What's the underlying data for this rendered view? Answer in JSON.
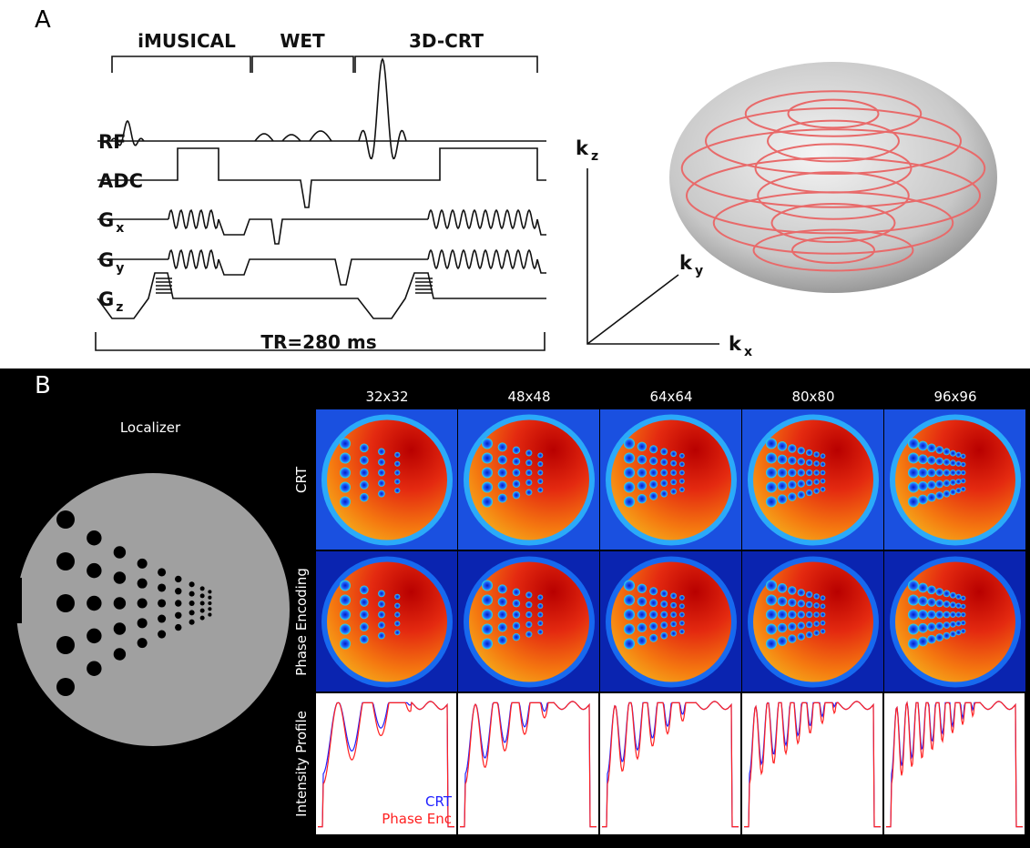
{
  "panel_a": {
    "label": "A",
    "sections": [
      "iMUSICAL",
      "WET",
      "3D-CRT"
    ],
    "channels": [
      {
        "name": "RF"
      },
      {
        "name": "ADC"
      },
      {
        "name": "G",
        "sub": "x"
      },
      {
        "name": "G",
        "sub": "y"
      },
      {
        "name": "G",
        "sub": "z"
      }
    ],
    "tr": "TR=280 ms",
    "axes": [
      {
        "name": "k",
        "sub": "z"
      },
      {
        "name": "k",
        "sub": "y"
      },
      {
        "name": "k",
        "sub": "x"
      }
    ]
  },
  "panel_b": {
    "label": "B",
    "localizer": "Localizer",
    "columns": [
      "32x32",
      "48x48",
      "64x64",
      "80x80",
      "96x96"
    ],
    "rows": [
      "CRT",
      "Phase Encoding",
      "Intensity Profile"
    ],
    "legend": [
      "CRT",
      "Phase Enc"
    ]
  }
}
